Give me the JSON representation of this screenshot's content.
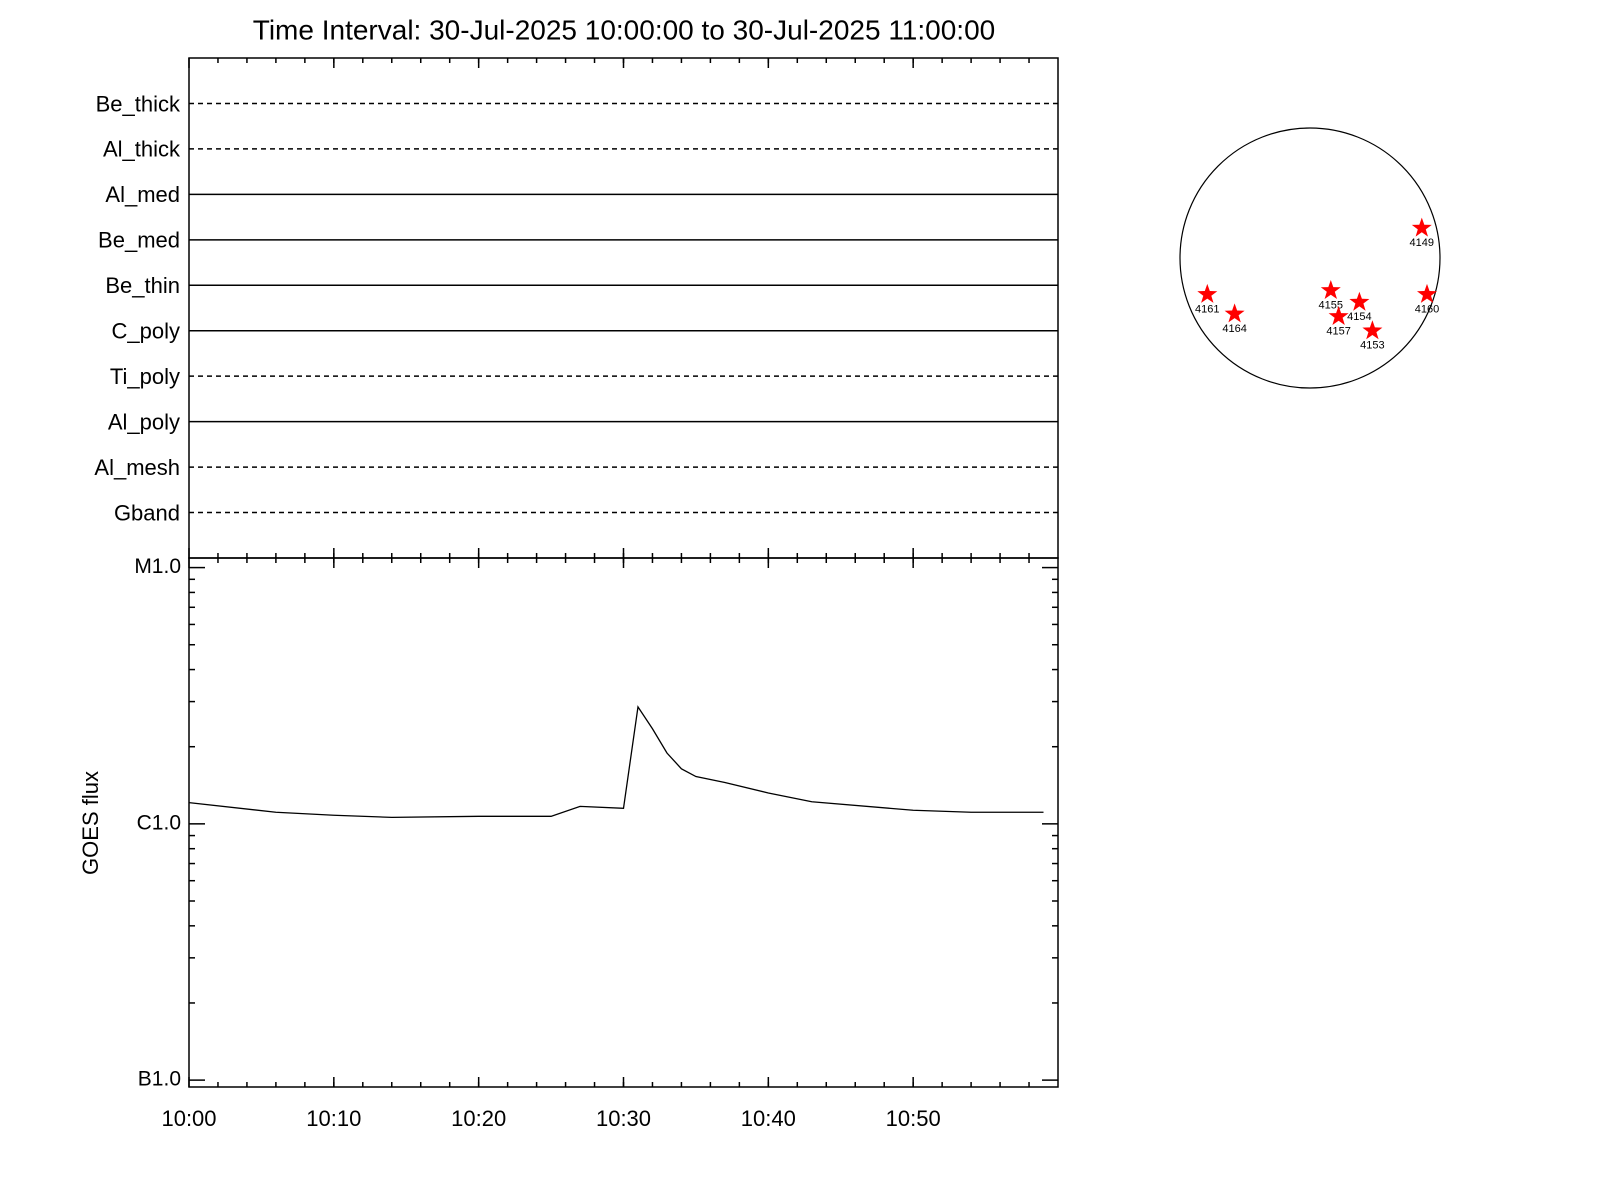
{
  "title": "Time Interval: 30-Jul-2025 10:00:00 to 30-Jul-2025 11:00:00",
  "chart_data": [
    {
      "type": "timeline",
      "categories": [
        "Be_thick",
        "Al_thick",
        "Al_med",
        "Be_med",
        "Be_thin",
        "C_poly",
        "Ti_poly",
        "Al_poly",
        "Al_mesh",
        "Gband"
      ],
      "line_styles": [
        "dashed",
        "dashed",
        "solid",
        "solid",
        "solid",
        "solid",
        "dashed",
        "solid",
        "dashed",
        "dashed"
      ],
      "color": "#000000"
    },
    {
      "type": "line",
      "ylabel": "GOES flux",
      "log_scale": true,
      "color": "#000000",
      "x": [
        "10:00",
        "10:06",
        "10:10",
        "10:14",
        "10:20",
        "10:25",
        "10:27",
        "10:30",
        "10:31",
        "10:32",
        "10:33",
        "10:34",
        "10:35",
        "10:37",
        "10:40",
        "10:43",
        "10:50",
        "10:54",
        "10:59"
      ],
      "values": [
        1.21e-06,
        1.11e-06,
        1.08e-06,
        1.06e-06,
        1.07e-06,
        1.07e-06,
        1.17e-06,
        1.15e-06,
        2.86e-06,
        2.35e-06,
        1.89e-06,
        1.64e-06,
        1.53e-06,
        1.45e-06,
        1.32e-06,
        1.22e-06,
        1.13e-06,
        1.11e-06,
        1.11e-06
      ],
      "xlim": [
        "10:00",
        "11:00"
      ],
      "xticks": [
        "10:00",
        "10:10",
        "10:20",
        "10:30",
        "10:40",
        "10:50"
      ],
      "ylim": [
        9.4e-08,
        1.09e-05
      ],
      "yticks": [
        {
          "value": 1e-07,
          "label": "B1.0"
        },
        {
          "value": 1e-06,
          "label": "C1.0"
        },
        {
          "value": 1e-05,
          "label": "M1.0"
        }
      ]
    },
    {
      "type": "scatter",
      "color": "#ff0000",
      "xlim": [
        -1,
        1
      ],
      "ylim": [
        -1,
        1
      ],
      "labels": [
        "4149",
        "4160",
        "4161",
        "4164",
        "4155",
        "4154",
        "4157",
        "4153"
      ],
      "x": [
        0.86,
        0.9,
        -0.79,
        -0.58,
        0.16,
        0.38,
        0.22,
        0.48
      ],
      "y": [
        0.23,
        -0.28,
        -0.28,
        -0.43,
        -0.25,
        -0.34,
        -0.45,
        -0.56
      ]
    }
  ]
}
